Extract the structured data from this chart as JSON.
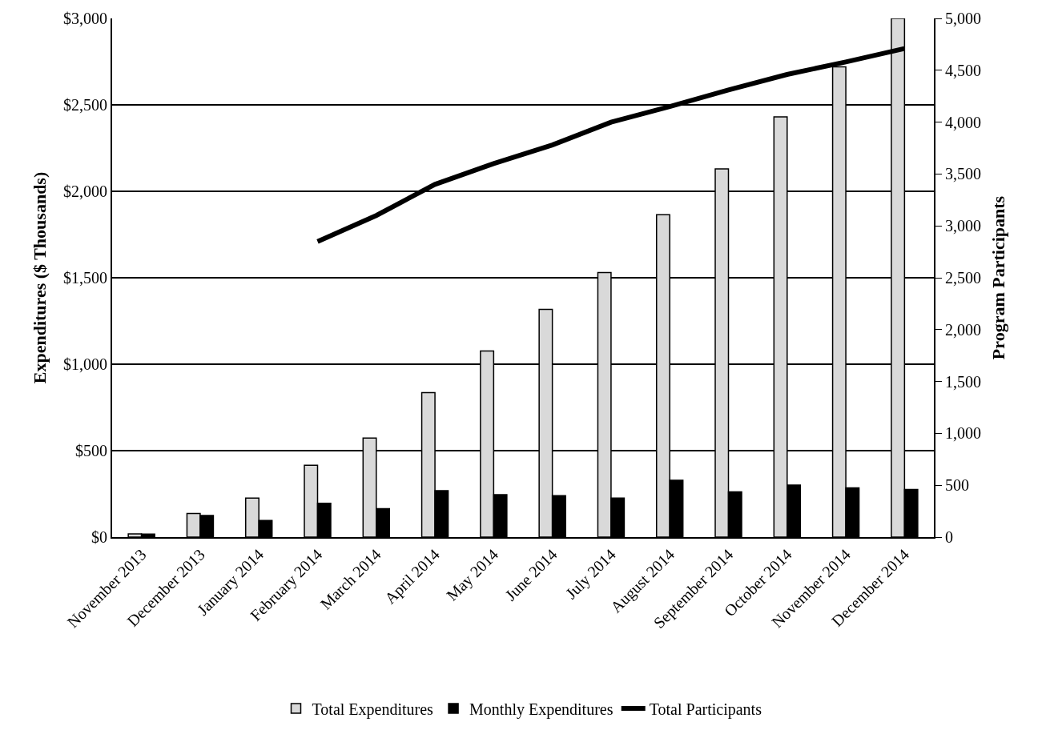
{
  "chart_data": {
    "type": "bar",
    "ylabel": "Expenditures ($ Thousands)",
    "y2label": "Program Participants",
    "categories": [
      "November 2013",
      "December 2013",
      "January 2014",
      "February 2014",
      "March 2014",
      "April 2014",
      "May 2014",
      "June 2014",
      "July 2014",
      "August 2014",
      "September 2014",
      "October 2014",
      "November 2014",
      "December 2014"
    ],
    "series": [
      {
        "name": "Total Expenditures",
        "color": "#d9d9d9",
        "values": [
          19,
          137,
          226,
          415,
          573,
          836,
          1076,
          1317,
          1530,
          1865,
          2130,
          2430,
          2720,
          3000
        ]
      },
      {
        "name": "Monthly Expenditures",
        "color": "#000000",
        "values": [
          17,
          125,
          96,
          196,
          164,
          268,
          245,
          240,
          226,
          329,
          262,
          301,
          285,
          276
        ]
      },
      {
        "name": "Total Participants",
        "type": "line",
        "axis": "y2",
        "color": "#000000",
        "values": [
          null,
          null,
          null,
          2850,
          3100,
          3400,
          3600,
          3780,
          4000,
          4150,
          4310,
          4460,
          4580,
          4710
        ]
      }
    ],
    "ylim": [
      0,
      3000
    ],
    "yticks": [
      {
        "value": 0,
        "label": "$0"
      },
      {
        "value": 500,
        "label": "$500"
      },
      {
        "value": 1000,
        "label": "$1,000"
      },
      {
        "value": 1500,
        "label": "$1,500"
      },
      {
        "value": 2000,
        "label": "$2,000"
      },
      {
        "value": 2500,
        "label": "$2,500"
      },
      {
        "value": 3000,
        "label": "$3,000"
      }
    ],
    "y2lim": [
      0,
      5000
    ],
    "y2ticks": [
      0,
      {
        "value": 500,
        "label": "500"
      },
      {
        "value": 1000,
        "label": "1,000"
      },
      {
        "value": 1500,
        "label": "1,500"
      },
      {
        "value": 2000,
        "label": "2,000"
      },
      {
        "value": 2500,
        "label": "2,500"
      },
      {
        "value": 3000,
        "label": "3,000"
      },
      {
        "value": 3500,
        "label": "3,500"
      },
      {
        "value": 4000,
        "label": "4,000"
      },
      {
        "value": 4500,
        "label": "4,500"
      },
      {
        "value": 5000,
        "label": "5,000"
      }
    ],
    "grid": "y",
    "legend": "bottom",
    "marker": "none",
    "line_style": "solid"
  }
}
